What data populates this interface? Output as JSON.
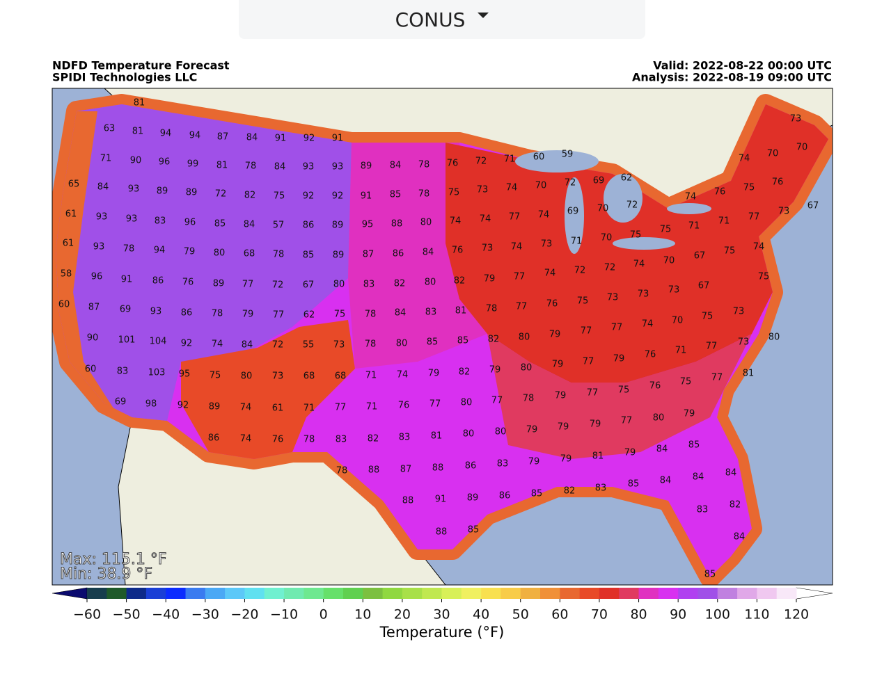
{
  "selector": {
    "label": "CONUS"
  },
  "header": {
    "title": "NDFD Temperature Forecast",
    "subtitle": "SPIDI Technologies LLC",
    "valid": "Valid: 2022-08-22 00:00 UTC",
    "analysis": "Analysis: 2022-08-19 09:00 UTC"
  },
  "map": {
    "stats": {
      "max": "Max: 115.1 °F",
      "min": "Min: 38.9 °F"
    },
    "ocean_color": "#9db2d6",
    "land_color": "#eeeedf",
    "labels": [
      81,
      63,
      81,
      94,
      94,
      87,
      84,
      91,
      92,
      91,
      73,
      70,
      70,
      71,
      90,
      96,
      99,
      81,
      78,
      84,
      93,
      93,
      89,
      84,
      78,
      76,
      72,
      71,
      60,
      59,
      74,
      65,
      84,
      93,
      89,
      89,
      72,
      82,
      75,
      92,
      92,
      91,
      85,
      78,
      75,
      73,
      74,
      70,
      72,
      69,
      62,
      76,
      75,
      76,
      61,
      93,
      93,
      83,
      96,
      85,
      84,
      57,
      86,
      89,
      95,
      88,
      80,
      74,
      74,
      77,
      74,
      69,
      70,
      72,
      74,
      77,
      73,
      67,
      71,
      71,
      61,
      93,
      78,
      94,
      79,
      80,
      68,
      78,
      85,
      89,
      87,
      86,
      84,
      76,
      73,
      74,
      73,
      71,
      70,
      75,
      75,
      74,
      75,
      67,
      70,
      58,
      96,
      91,
      86,
      76,
      89,
      77,
      72,
      67,
      80,
      83,
      82,
      80,
      82,
      79,
      77,
      74,
      72,
      72,
      74,
      75,
      67,
      60,
      87,
      69,
      93,
      86,
      78,
      79,
      77,
      62,
      75,
      78,
      84,
      83,
      81,
      78,
      77,
      76,
      75,
      73,
      73,
      73,
      75,
      70,
      73,
      90,
      101,
      104,
      92,
      74,
      84,
      72,
      55,
      73,
      78,
      80,
      85,
      85,
      82,
      80,
      79,
      77,
      77,
      74,
      80,
      73,
      77,
      71,
      76,
      79,
      77,
      79,
      60,
      83,
      103,
      95,
      75,
      80,
      73,
      68,
      68,
      71,
      74,
      79,
      82,
      79,
      80,
      81,
      77,
      75,
      76,
      75,
      77,
      79,
      69,
      98,
      92,
      89,
      74,
      61,
      71,
      77,
      71,
      76,
      77,
      80,
      77,
      78,
      79,
      80,
      77,
      79,
      79,
      79,
      80,
      86,
      74,
      76,
      78,
      83,
      82,
      83,
      81,
      80,
      85,
      84,
      79,
      81,
      79,
      79,
      83,
      78,
      88,
      87,
      88,
      86,
      84,
      84,
      84,
      85,
      83,
      82,
      85,
      86,
      89,
      91,
      88,
      83,
      82,
      88,
      85,
      84,
      85
    ]
  },
  "colorbar": {
    "label": "Temperature (°F)",
    "clim": [
      -60,
      120
    ],
    "ticks": [
      {
        "value": -60,
        "label": "−60"
      },
      {
        "value": -50,
        "label": "−50"
      },
      {
        "value": -40,
        "label": "−40"
      },
      {
        "value": -30,
        "label": "−30"
      },
      {
        "value": -20,
        "label": "−20"
      },
      {
        "value": -10,
        "label": "−10"
      },
      0,
      10,
      20,
      30,
      40,
      50,
      60,
      70,
      80,
      90,
      100,
      110,
      120
    ],
    "under_color": "#0a0a6e",
    "over_color": "#ffffff",
    "colors": [
      "#173d4d",
      "#1f5a2a",
      "#0d2a8a",
      "#1a3fd6",
      "#0b2cff",
      "#3a7bf0",
      "#4aa8f5",
      "#5cc8f8",
      "#60e0f0",
      "#70f0d0",
      "#70eab0",
      "#6ee890",
      "#66e06a",
      "#60d050",
      "#7cc040",
      "#90d840",
      "#a8e048",
      "#c0e850",
      "#d8f058",
      "#f0f060",
      "#f8e050",
      "#f8cc48",
      "#f0b040",
      "#f09038",
      "#e86830",
      "#e84a28",
      "#e03028",
      "#e03a60",
      "#e030c0",
      "#d830f0",
      "#b040f0",
      "#a050e8",
      "#c080e0",
      "#e0a8e8",
      "#f0c8f0",
      "#f8e8f8"
    ]
  }
}
